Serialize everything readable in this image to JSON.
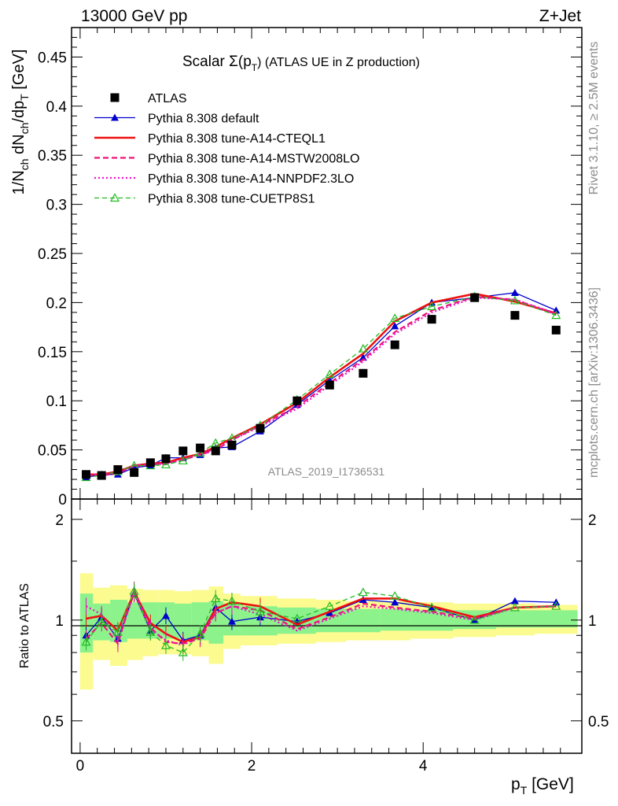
{
  "header": {
    "left": "13000 GeV pp",
    "right": "Z+Jet"
  },
  "side": {
    "rivet": "Rivet 3.1.10, ≥ 2.5M events",
    "mcplots": "mcplots.cern.ch [arXiv:1306.3436]"
  },
  "watermark": "ATLAS_2019_I1736531",
  "title": {
    "main": "Scalar Σ(p",
    "sub": "T",
    "end": ") (ATLAS UE in Z production)"
  },
  "ylabel_main": {
    "a": "1/N",
    "b": "ch",
    "c": " dN",
    "d": "ch",
    "e": "/dp",
    "f": "T",
    "g": " [GeV]"
  },
  "ylabel_ratio": "Ratio to ATLAS",
  "xlabel": {
    "a": "p",
    "b": "T",
    "c": " [GeV]"
  },
  "legend": [
    {
      "label": "ATLAS",
      "color": "#000000",
      "style": "marker-square"
    },
    {
      "label": "Pythia 8.308 default",
      "color": "#0000cc",
      "style": "solid-triangle"
    },
    {
      "label": "Pythia 8.308 tune-A14-CTEQL1",
      "color": "#ee1111",
      "style": "solid-thick"
    },
    {
      "label": "Pythia 8.308 tune-A14-MSTW2008LO",
      "color": "#ee1177",
      "style": "dashed"
    },
    {
      "label": "Pythia 8.308 tune-A14-NNPDF2.3LO",
      "color": "#ee11cc",
      "style": "dotted"
    },
    {
      "label": "Pythia 8.308 tune-CUETP8S1",
      "color": "#22bb22",
      "style": "dashed-open-triangle"
    }
  ],
  "chart_data": [
    {
      "type": "scatter",
      "panel": "main",
      "xlim": [
        -0.1,
        5.85
      ],
      "ylim": [
        0,
        0.48
      ],
      "yticks": [
        0,
        0.05,
        0.1,
        0.15,
        0.2,
        0.25,
        0.3,
        0.35,
        0.4,
        0.45
      ],
      "ytick_labels": [
        "0",
        "0.05",
        "0.1",
        "0.15",
        "0.2",
        "0.25",
        "0.3",
        "0.35",
        "0.4",
        "0.45"
      ],
      "x": [
        0.07,
        0.25,
        0.44,
        0.63,
        0.82,
        1.0,
        1.2,
        1.4,
        1.58,
        1.77,
        2.1,
        2.53,
        2.91,
        3.3,
        3.67,
        4.1,
        4.6,
        5.07,
        5.55
      ],
      "series": [
        {
          "name": "ATLAS",
          "color": "#000000",
          "values": [
            0.025,
            0.024,
            0.03,
            0.027,
            0.037,
            0.041,
            0.049,
            0.052,
            0.049,
            0.055,
            0.072,
            0.1,
            0.116,
            0.128,
            0.157,
            0.183,
            0.205,
            0.187,
            0.172
          ]
        },
        {
          "name": "Pythia 8.308 default",
          "color": "#0000cc",
          "values": [
            0.022,
            0.025,
            0.025,
            0.032,
            0.034,
            0.042,
            0.042,
            0.045,
            0.052,
            0.053,
            0.069,
            0.096,
            0.121,
            0.144,
            0.176,
            0.2,
            0.205,
            0.21,
            0.192
          ]
        },
        {
          "name": "Pythia 8.308 tune-A14-CTEQL1",
          "color": "#ee1111",
          "values": [
            0.025,
            0.025,
            0.028,
            0.034,
            0.036,
            0.037,
            0.042,
            0.046,
            0.053,
            0.062,
            0.076,
            0.098,
            0.124,
            0.148,
            0.181,
            0.2,
            0.209,
            0.201,
            0.189
          ]
        },
        {
          "name": "Pythia 8.308 tune-A14-MSTW2008LO",
          "color": "#ee1177",
          "values": [
            0.024,
            0.024,
            0.026,
            0.034,
            0.035,
            0.036,
            0.04,
            0.045,
            0.05,
            0.06,
            0.075,
            0.094,
            0.118,
            0.142,
            0.17,
            0.192,
            0.206,
            0.203,
            0.188
          ]
        },
        {
          "name": "Pythia 8.308 tune-A14-NNPDF2.3LO",
          "color": "#ee11cc",
          "values": [
            0.025,
            0.025,
            0.027,
            0.033,
            0.035,
            0.036,
            0.04,
            0.046,
            0.051,
            0.06,
            0.074,
            0.092,
            0.116,
            0.14,
            0.168,
            0.19,
            0.205,
            0.203,
            0.189
          ]
        },
        {
          "name": "Pythia 8.308 tune-CUETP8S1",
          "color": "#22bb22",
          "values": [
            0.022,
            0.024,
            0.028,
            0.034,
            0.034,
            0.035,
            0.039,
            0.047,
            0.057,
            0.062,
            0.075,
            0.101,
            0.127,
            0.153,
            0.184,
            0.196,
            0.206,
            0.202,
            0.187
          ]
        }
      ]
    },
    {
      "type": "scatter",
      "panel": "ratio",
      "ylabel": "Ratio to ATLAS",
      "xlabel": "p_T [GeV]",
      "xlim": [
        -0.1,
        5.85
      ],
      "ylim": [
        0.4,
        2.3
      ],
      "yticks": [
        0.5,
        1,
        2
      ],
      "ytick_labels": [
        "0.5",
        "1",
        "2"
      ],
      "xticks": [
        0,
        2,
        4
      ],
      "xtick_labels": [
        "0",
        "2",
        "4"
      ],
      "x": [
        0.07,
        0.25,
        0.44,
        0.63,
        0.82,
        1.0,
        1.2,
        1.4,
        1.58,
        1.77,
        2.1,
        2.53,
        2.91,
        3.3,
        3.67,
        4.1,
        4.6,
        5.07,
        5.55
      ],
      "bin_edges": [
        0.0,
        0.15,
        0.35,
        0.55,
        0.73,
        0.91,
        1.1,
        1.3,
        1.5,
        1.67,
        1.87,
        2.3,
        2.75,
        3.1,
        3.5,
        3.85,
        4.35,
        4.85,
        5.3,
        5.8
      ],
      "band_green": [
        [
          0.8,
          1.2
        ],
        [
          0.87,
          1.12
        ],
        [
          0.86,
          1.15
        ],
        [
          0.88,
          1.13
        ],
        [
          0.88,
          1.13
        ],
        [
          0.88,
          1.13
        ],
        [
          0.88,
          1.12
        ],
        [
          0.87,
          1.13
        ],
        [
          0.85,
          1.14
        ],
        [
          0.9,
          1.12
        ],
        [
          0.9,
          1.1
        ],
        [
          0.91,
          1.09
        ],
        [
          0.92,
          1.08
        ],
        [
          0.92,
          1.08
        ],
        [
          0.93,
          1.08
        ],
        [
          0.93,
          1.07
        ],
        [
          0.94,
          1.07
        ],
        [
          0.95,
          1.07
        ],
        [
          0.95,
          1.07
        ]
      ],
      "band_yellow": [
        [
          0.62,
          1.38
        ],
        [
          0.76,
          1.25
        ],
        [
          0.73,
          1.27
        ],
        [
          0.76,
          1.24
        ],
        [
          0.78,
          1.23
        ],
        [
          0.79,
          1.23
        ],
        [
          0.79,
          1.22
        ],
        [
          0.78,
          1.23
        ],
        [
          0.74,
          1.26
        ],
        [
          0.82,
          1.2
        ],
        [
          0.84,
          1.18
        ],
        [
          0.85,
          1.16
        ],
        [
          0.86,
          1.15
        ],
        [
          0.87,
          1.14
        ],
        [
          0.87,
          1.14
        ],
        [
          0.88,
          1.13
        ],
        [
          0.89,
          1.12
        ],
        [
          0.9,
          1.12
        ],
        [
          0.91,
          1.11
        ]
      ],
      "series": [
        {
          "name": "Pythia 8.308 default",
          "color": "#0000cc",
          "values": [
            0.9,
            1.02,
            0.88,
            1.2,
            0.93,
            1.03,
            0.87,
            0.9,
            1.09,
            0.99,
            1.02,
            0.99,
            1.05,
            1.15,
            1.13,
            1.09,
            1.0,
            1.14,
            1.13
          ]
        },
        {
          "name": "Pythia 8.308 tune-A14-CTEQL1",
          "color": "#ee1111",
          "values": [
            1.01,
            1.03,
            0.93,
            1.21,
            0.98,
            0.91,
            0.86,
            0.89,
            1.08,
            1.13,
            1.1,
            0.97,
            1.06,
            1.16,
            1.16,
            1.1,
            1.02,
            1.09,
            1.1
          ]
        },
        {
          "name": "Pythia 8.308 tune-A14-MSTW2008LO",
          "color": "#ee1177",
          "values": [
            0.88,
            0.98,
            0.85,
            1.23,
            0.95,
            0.86,
            0.85,
            0.88,
            1.05,
            1.1,
            1.07,
            0.94,
            1.02,
            1.12,
            1.09,
            1.06,
            1.01,
            1.09,
            1.1
          ]
        },
        {
          "name": "Pythia 8.308 tune-A14-NNPDF2.3LO",
          "color": "#ee11cc",
          "values": [
            1.1,
            1.04,
            0.87,
            1.2,
            0.94,
            0.87,
            0.84,
            0.9,
            1.05,
            1.1,
            1.04,
            0.93,
            1.01,
            1.1,
            1.08,
            1.05,
            1.0,
            1.09,
            1.1
          ]
        },
        {
          "name": "Pythia 8.308 tune-CUETP8S1",
          "color": "#22bb22",
          "values": [
            0.86,
            0.99,
            0.92,
            1.22,
            0.92,
            0.84,
            0.8,
            0.91,
            1.16,
            1.14,
            1.06,
            1.01,
            1.1,
            1.21,
            1.18,
            1.09,
            1.0,
            1.09,
            1.1
          ]
        }
      ]
    }
  ]
}
